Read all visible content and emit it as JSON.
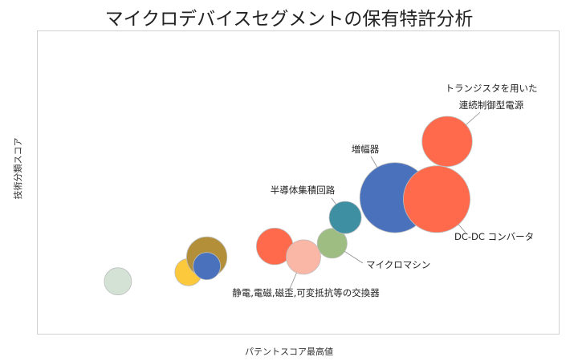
{
  "chart_data": {
    "type": "bubble",
    "title": "マイクロデバイスセグメントの保有特許分析",
    "xlabel": "パテントスコア最高値",
    "ylabel": "技術分類スコア",
    "xlim": [
      0,
      100
    ],
    "ylim": [
      0,
      100
    ],
    "grid": false,
    "legend": "none",
    "points": [
      {
        "x": 15.5,
        "y": 17.5,
        "size": 5,
        "color": "#d3e2d5"
      },
      {
        "x": 29.0,
        "y": 20.5,
        "size": 5,
        "color": "#fdc93c"
      },
      {
        "x": 32.5,
        "y": 25.5,
        "size": 11,
        "color": "#b38f3a"
      },
      {
        "x": 32.5,
        "y": 22.5,
        "size": 5,
        "color": "#4a72bc"
      },
      {
        "x": 45.5,
        "y": 29.0,
        "size": 9,
        "color": "#ff6a4d"
      },
      {
        "x": 51.0,
        "y": 25.5,
        "size": 8,
        "color": "#fbb7a6"
      },
      {
        "x": 56.5,
        "y": 30.0,
        "size": 6,
        "color": "#9ebd82"
      },
      {
        "x": 59.0,
        "y": 38.5,
        "size": 7,
        "color": "#3f8fa3"
      },
      {
        "x": 68.5,
        "y": 45.0,
        "size": 33,
        "color": "#4a72bc"
      },
      {
        "x": 76.5,
        "y": 44.5,
        "size": 30,
        "color": "#ff6a4d"
      },
      {
        "x": 78.5,
        "y": 63.5,
        "size": 17,
        "color": "#ff6a4d"
      }
    ],
    "annotations": [
      {
        "text": "トランジスタを用いた",
        "point": 10
      },
      {
        "text": "連続制御型電源",
        "point": 10
      },
      {
        "text": "増幅器",
        "point": 8
      },
      {
        "text": "半導体集積回路",
        "point": 7
      },
      {
        "text": "DC-DC コンバータ",
        "point": 9
      },
      {
        "text": "マイクロマシン",
        "point": 6
      },
      {
        "text": "静電,電磁,磁歪,可変抵抗等の交換器",
        "point": 5
      }
    ]
  }
}
